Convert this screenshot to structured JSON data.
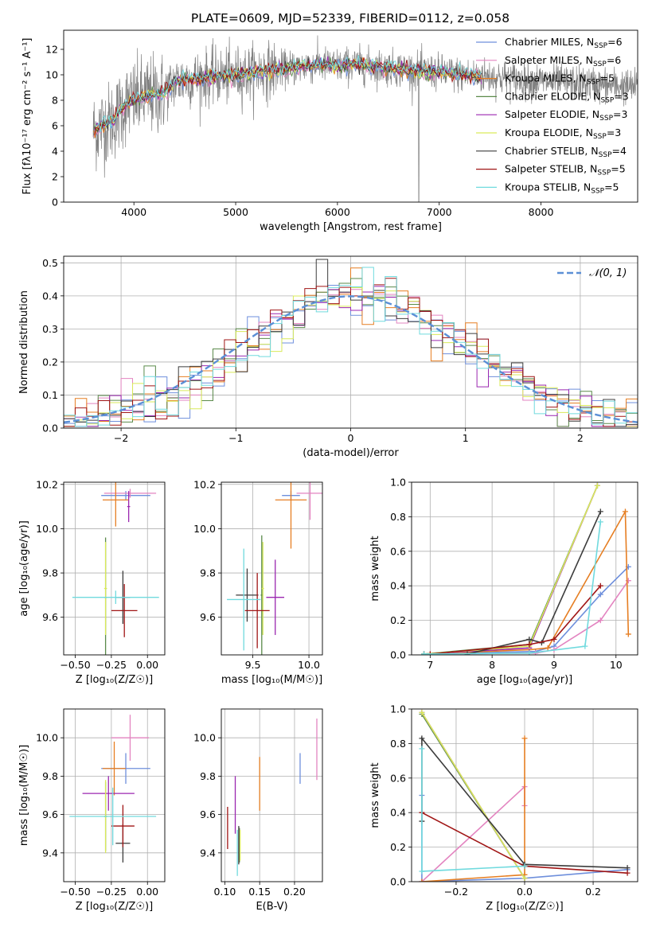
{
  "figure_title": "PLATE=0609, MJD=52339, FIBERID=0112, z=0.058",
  "colors": {
    "Chabrier MILES": "#6e8fdc",
    "Salpeter MILES": "#e384c0",
    "Kroupa MILES": "#e67e22",
    "Chabrier ELODIE": "#5a8a4a",
    "Salpeter ELODIE": "#9b27b0",
    "Kroupa ELODIE": "#d9ea5a",
    "Chabrier STELIB": "#3c3c3c",
    "Salpeter STELIB": "#a01515",
    "Kroupa STELIB": "#70dade",
    "data": "#808080",
    "gauss": "#5b8fd6",
    "grid": "#b0b0b0"
  },
  "chart_data": [
    {
      "id": "spectrum",
      "type": "line",
      "xlabel": "wavelength [Angstrom, rest frame]",
      "ylabel": "Flux [f$_\\lambda$10$^{-17}$ erg cm$^{-2}$ s$^{-1}$ A$^{-1}$]",
      "ylabel_html": "Flux [fλ10⁻¹⁷ erg cm⁻² s⁻¹ A⁻¹]",
      "xlim": [
        3310,
        8950
      ],
      "ylim": [
        0,
        13.5
      ],
      "xticks": [
        4000,
        5000,
        6000,
        7000,
        8000
      ],
      "yticks": [
        0,
        2,
        4,
        6,
        8,
        10,
        12
      ],
      "grid": false,
      "legend_position": "top-right",
      "legend": [
        {
          "name": "Chabrier MILES",
          "label": "Chabrier MILES, N",
          "sub": "SSP",
          "n": "=6"
        },
        {
          "name": "Salpeter MILES",
          "label": "Salpeter MILES, N",
          "sub": "SSP",
          "n": "=6"
        },
        {
          "name": "Kroupa MILES",
          "label": "Kroupa MILES, N",
          "sub": "SSP",
          "n": "=5"
        },
        {
          "name": "Chabrier ELODIE",
          "label": "Chabrier ELODIE, N",
          "sub": "SSP",
          "n": "=3"
        },
        {
          "name": "Salpeter ELODIE",
          "label": "Salpeter ELODIE, N",
          "sub": "SSP",
          "n": "=3"
        },
        {
          "name": "Kroupa ELODIE",
          "label": "Kroupa ELODIE, N",
          "sub": "SSP",
          "n": "=3"
        },
        {
          "name": "Chabrier STELIB",
          "label": "Chabrier STELIB, N",
          "sub": "SSP",
          "n": "=4"
        },
        {
          "name": "Salpeter STELIB",
          "label": "Salpeter STELIB, N",
          "sub": "SSP",
          "n": "=5"
        },
        {
          "name": "Kroupa STELIB",
          "label": "Kroupa STELIB, N",
          "sub": "SSP",
          "n": "=5"
        }
      ],
      "continuum_x": [
        3600,
        3650,
        3700,
        3750,
        3800,
        3850,
        3900,
        3950,
        4000,
        4100,
        4200,
        4300,
        4400,
        4500,
        4600,
        4700,
        4800,
        4900,
        5000,
        5200,
        5400,
        5600,
        5800,
        6000,
        6200,
        6400,
        6600,
        6800,
        7000,
        7200,
        7400,
        7600,
        7800,
        8000,
        8200,
        8400,
        8600,
        8800,
        8950
      ],
      "continuum_y": [
        5.6,
        5.8,
        6.1,
        6.2,
        6.4,
        7.0,
        7.5,
        7.8,
        8.0,
        8.3,
        8.4,
        8.6,
        9.4,
        9.6,
        9.7,
        9.8,
        9.9,
        9.9,
        10.0,
        10.2,
        10.4,
        10.6,
        10.8,
        10.7,
        10.8,
        10.6,
        10.5,
        10.3,
        10.2,
        10.0,
        9.9,
        9.8,
        9.6,
        9.5,
        9.4,
        9.3,
        9.2,
        9.1,
        9.0
      ]
    },
    {
      "id": "residuals",
      "type": "bar",
      "xlabel": "(data-model)/error",
      "ylabel": "Normed distribution",
      "xlim": [
        -2.5,
        2.5
      ],
      "ylim": [
        0,
        0.52
      ],
      "xticks": [
        -2,
        -1,
        0,
        1,
        2
      ],
      "xtick_labels": [
        "−2",
        "−1",
        "0",
        "1",
        "2"
      ],
      "yticks": [
        0.0,
        0.1,
        0.2,
        0.3,
        0.4,
        0.5
      ],
      "grid": true,
      "legend_position": "top-right",
      "legend": [
        {
          "name": "𝒩(0, 1)"
        }
      ],
      "bins": 50
    },
    {
      "id": "age_vs_Z",
      "type": "scatter",
      "xlabel": "Z [log₁₀(Z/Z☉)]",
      "ylabel": "age  [log₁₀(age/yr)]",
      "xlim": [
        -0.58,
        0.12
      ],
      "ylim": [
        9.43,
        10.21
      ],
      "xticks": [
        -0.5,
        -0.25,
        0.0
      ],
      "xtick_labels": [
        "−0.50",
        "−0.25",
        "0.00"
      ],
      "yticks": [
        9.6,
        9.8,
        10.0,
        10.2
      ],
      "grid": true,
      "points": [
        {
          "series": "Chabrier MILES",
          "x": -0.15,
          "xerr": 0.17,
          "y": 10.15,
          "yerr": 0.02
        },
        {
          "series": "Salpeter MILES",
          "x": -0.12,
          "xerr": 0.18,
          "y": 10.16,
          "yerr": 0.02
        },
        {
          "series": "Kroupa MILES",
          "x": -0.22,
          "xerr": 0.09,
          "y": 10.13,
          "yerr": 0.12
        },
        {
          "series": "Chabrier ELODIE",
          "x": -0.29,
          "xerr": 0.01,
          "y": 9.69,
          "yerr": 0.27
        },
        {
          "series": "Salpeter ELODIE",
          "x": -0.13,
          "xerr": 0.01,
          "y": 10.1,
          "yerr": 0.07
        },
        {
          "series": "Kroupa ELODIE",
          "x": -0.29,
          "xerr": 0.01,
          "y": 9.73,
          "yerr": 0.21
        },
        {
          "series": "Chabrier STELIB",
          "x": -0.17,
          "xerr": 0.05,
          "y": 9.69,
          "yerr": 0.12
        },
        {
          "series": "Salpeter STELIB",
          "x": -0.16,
          "xerr": 0.09,
          "y": 9.63,
          "yerr": 0.12
        },
        {
          "series": "Kroupa STELIB",
          "x": -0.22,
          "xerr": 0.3,
          "y": 9.69,
          "yerr": 0.03
        }
      ]
    },
    {
      "id": "age_vs_mass",
      "type": "scatter",
      "xlabel": "mass [log₁₀(M/M☉)]",
      "ylabel": "",
      "xlim": [
        9.22,
        10.12
      ],
      "ylim": [
        9.43,
        10.21
      ],
      "xticks": [
        9.5,
        10.0
      ],
      "xtick_labels": [
        "9.5",
        "10.0"
      ],
      "yticks": [
        9.6,
        9.8,
        10.0,
        10.2
      ],
      "grid": true,
      "points": [
        {
          "series": "Chabrier MILES",
          "x": 9.84,
          "xerr": 0.08,
          "y": 10.15,
          "yerr": 0.02
        },
        {
          "series": "Salpeter MILES",
          "x": 10.01,
          "xerr": 0.12,
          "y": 10.16,
          "yerr": 0.12
        },
        {
          "series": "Kroupa MILES",
          "x": 9.84,
          "xerr": 0.14,
          "y": 10.13,
          "yerr": 0.22
        },
        {
          "series": "Chabrier ELODIE",
          "x": 9.58,
          "xerr": 0.01,
          "y": 9.7,
          "yerr": 0.27
        },
        {
          "series": "Salpeter ELODIE",
          "x": 9.7,
          "xerr": 0.08,
          "y": 9.69,
          "yerr": 0.17
        },
        {
          "series": "Kroupa ELODIE",
          "x": 9.59,
          "xerr": 0.01,
          "y": 9.73,
          "yerr": 0.21
        },
        {
          "series": "Chabrier STELIB",
          "x": 9.45,
          "xerr": 0.1,
          "y": 9.7,
          "yerr": 0.12
        },
        {
          "series": "Salpeter STELIB",
          "x": 9.54,
          "xerr": 0.11,
          "y": 9.63,
          "yerr": 0.17
        },
        {
          "series": "Kroupa STELIB",
          "x": 9.42,
          "xerr": 0.15,
          "y": 9.68,
          "yerr": 0.23
        }
      ]
    },
    {
      "id": "weight_vs_age",
      "type": "line",
      "xlabel": "age  [log₁₀(age/yr)]",
      "ylabel": "mass weight",
      "xlim": [
        6.7,
        10.35
      ],
      "ylim": [
        0,
        1.0
      ],
      "xticks": [
        7,
        8,
        9,
        10
      ],
      "yticks": [
        0.0,
        0.2,
        0.4,
        0.6,
        0.8,
        1.0
      ],
      "grid": true,
      "series": [
        {
          "name": "Chabrier MILES",
          "x": [
            6.9,
            8.7,
            9.0,
            9.75,
            10.2
          ],
          "y": [
            0.005,
            0.02,
            0.05,
            0.35,
            0.51
          ]
        },
        {
          "name": "Salpeter MILES",
          "x": [
            6.9,
            8.7,
            9.0,
            9.75,
            10.2
          ],
          "y": [
            0.005,
            0.01,
            0.03,
            0.2,
            0.43
          ]
        },
        {
          "name": "Kroupa MILES",
          "x": [
            6.9,
            8.6,
            8.9,
            10.15,
            10.2
          ],
          "y": [
            0.005,
            0.03,
            0.04,
            0.83,
            0.12
          ]
        },
        {
          "name": "Chabrier ELODIE",
          "x": [
            6.9,
            8.6,
            9.7
          ],
          "y": [
            0.005,
            0.06,
            0.98
          ]
        },
        {
          "name": "Salpeter ELODIE",
          "x": [
            6.9,
            8.6,
            9.7
          ],
          "y": [
            0.005,
            0.04,
            0.98
          ]
        },
        {
          "name": "Kroupa ELODIE",
          "x": [
            6.9,
            8.6,
            9.7
          ],
          "y": [
            0.005,
            0.05,
            0.98
          ]
        },
        {
          "name": "Chabrier STELIB",
          "x": [
            7.6,
            8.6,
            8.8,
            9.75
          ],
          "y": [
            0.005,
            0.09,
            0.07,
            0.83
          ]
        },
        {
          "name": "Salpeter STELIB",
          "x": [
            7.0,
            8.6,
            9.0,
            9.75
          ],
          "y": [
            0.005,
            0.06,
            0.09,
            0.4
          ]
        },
        {
          "name": "Kroupa STELIB",
          "x": [
            6.9,
            8.6,
            9.5,
            9.75
          ],
          "y": [
            0.005,
            0.01,
            0.05,
            0.77
          ]
        }
      ]
    },
    {
      "id": "mass_vs_Z",
      "type": "scatter",
      "xlabel": "Z [log₁₀(Z/Z☉)]",
      "ylabel": "mass [log₁₀(M/M☉)]",
      "xlim": [
        -0.58,
        0.12
      ],
      "ylim": [
        9.25,
        10.15
      ],
      "xticks": [
        -0.5,
        -0.25,
        0.0
      ],
      "xtick_labels": [
        "−0.50",
        "−0.25",
        "0.00"
      ],
      "yticks": [
        9.4,
        9.6,
        9.8,
        10.0
      ],
      "grid": true,
      "points": [
        {
          "series": "Chabrier MILES",
          "x": -0.15,
          "xerr": 0.17,
          "y": 9.84,
          "yerr": 0.08
        },
        {
          "series": "Salpeter MILES",
          "x": -0.12,
          "xerr": 0.13,
          "y": 10.0,
          "yerr": 0.12
        },
        {
          "series": "Kroupa MILES",
          "x": -0.23,
          "xerr": 0.08,
          "y": 9.84,
          "yerr": 0.14
        },
        {
          "series": "Chabrier ELODIE",
          "x": -0.29,
          "xerr": 0.01,
          "y": 9.59,
          "yerr": 0.18
        },
        {
          "series": "Salpeter ELODIE",
          "x": -0.27,
          "xerr": 0.18,
          "y": 9.71,
          "yerr": 0.09
        },
        {
          "series": "Kroupa ELODIE",
          "x": -0.29,
          "xerr": 0.01,
          "y": 9.59,
          "yerr": 0.19
        },
        {
          "series": "Chabrier STELIB",
          "x": -0.17,
          "xerr": 0.05,
          "y": 9.45,
          "yerr": 0.1
        },
        {
          "series": "Salpeter STELIB",
          "x": -0.17,
          "xerr": 0.08,
          "y": 9.54,
          "yerr": 0.11
        },
        {
          "series": "Kroupa STELIB",
          "x": -0.24,
          "xerr": 0.3,
          "y": 9.59,
          "yerr": 0.15
        }
      ]
    },
    {
      "id": "mass_vs_ebv",
      "type": "scatter",
      "xlabel": "E(B-V)",
      "ylabel": "",
      "xlim": [
        0.095,
        0.24
      ],
      "ylim": [
        9.25,
        10.15
      ],
      "xticks": [
        0.1,
        0.15,
        0.2
      ],
      "xtick_labels": [
        "0.10",
        "0.15",
        "0.20"
      ],
      "yticks": [
        9.4,
        9.6,
        9.8,
        10.0
      ],
      "grid": true,
      "points": [
        {
          "series": "Chabrier MILES",
          "x": 0.208,
          "xerr": 0,
          "y": 9.84,
          "yerr": 0.08
        },
        {
          "series": "Salpeter MILES",
          "x": 0.232,
          "xerr": 0,
          "y": 9.94,
          "yerr": 0.16
        },
        {
          "series": "Kroupa MILES",
          "x": 0.15,
          "xerr": 0,
          "y": 9.76,
          "yerr": 0.14
        },
        {
          "series": "Chabrier ELODIE",
          "x": 0.121,
          "xerr": 0,
          "y": 9.44,
          "yerr": 0.09
        },
        {
          "series": "Salpeter ELODIE",
          "x": 0.115,
          "xerr": 0,
          "y": 9.65,
          "yerr": 0.15
        },
        {
          "series": "Kroupa ELODIE",
          "x": 0.122,
          "xerr": 0,
          "y": 9.44,
          "yerr": 0.08
        },
        {
          "series": "Chabrier STELIB",
          "x": 0.12,
          "xerr": 0,
          "y": 9.44,
          "yerr": 0.1
        },
        {
          "series": "Salpeter STELIB",
          "x": 0.104,
          "xerr": 0,
          "y": 9.53,
          "yerr": 0.11
        },
        {
          "series": "Kroupa STELIB",
          "x": 0.118,
          "xerr": 0,
          "y": 9.4,
          "yerr": 0.12
        }
      ]
    },
    {
      "id": "weight_vs_Z",
      "type": "line",
      "xlabel": "Z [log₁₀(Z/Z☉)]",
      "ylabel": "mass weight",
      "xlim": [
        -0.33,
        0.33
      ],
      "ylim": [
        0,
        1.0
      ],
      "xticks": [
        -0.2,
        0.0,
        0.2
      ],
      "xtick_labels": [
        "−0.2",
        "0.0",
        "0.2"
      ],
      "yticks": [
        0.0,
        0.2,
        0.4,
        0.6,
        0.8,
        1.0
      ],
      "grid": true,
      "series": [
        {
          "name": "Chabrier MILES",
          "x": [
            -0.3,
            -0.3,
            0.0,
            0.3
          ],
          "y": [
            0.5,
            0.0,
            0.02,
            0.07
          ]
        },
        {
          "name": "Salpeter MILES",
          "x": [
            -0.3,
            0.0,
            0.0
          ],
          "y": [
            0.0,
            0.55,
            0.44
          ]
        },
        {
          "name": "Kroupa MILES",
          "x": [
            -0.3,
            0.0,
            0.0
          ],
          "y": [
            0.0,
            0.04,
            0.83
          ]
        },
        {
          "name": "Chabrier ELODIE",
          "x": [
            -0.3,
            0.0
          ],
          "y": [
            0.97,
            0.02
          ]
        },
        {
          "name": "Salpeter ELODIE",
          "x": [
            -0.3,
            0.0
          ],
          "y": [
            0.98,
            0.02
          ]
        },
        {
          "name": "Kroupa ELODIE",
          "x": [
            -0.3,
            0.0
          ],
          "y": [
            0.98,
            0.02
          ]
        },
        {
          "name": "Chabrier STELIB",
          "x": [
            -0.3,
            -0.3,
            0.0,
            0.3
          ],
          "y": [
            0.35,
            0.83,
            0.1,
            0.08
          ]
        },
        {
          "name": "Salpeter STELIB",
          "x": [
            -0.3,
            0.0,
            0.3
          ],
          "y": [
            0.4,
            0.09,
            0.05
          ]
        },
        {
          "name": "Kroupa STELIB",
          "x": [
            -0.3,
            -0.3,
            0.0
          ],
          "y": [
            0.77,
            0.06,
            0.09
          ]
        }
      ]
    }
  ]
}
